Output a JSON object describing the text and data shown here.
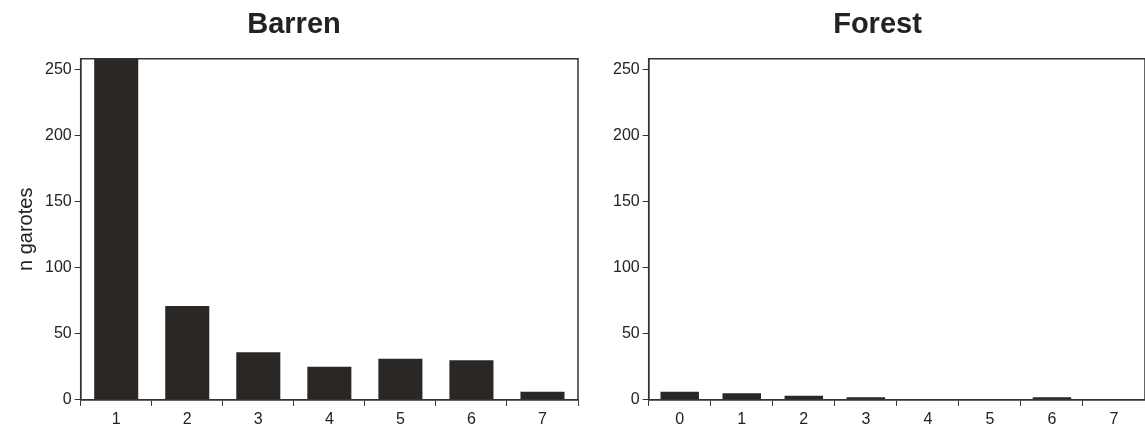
{
  "chart_data": [
    {
      "type": "bar",
      "title": "Barren",
      "ylabel": "n garotes",
      "categories": [
        "1",
        "2",
        "3",
        "4",
        "5",
        "6",
        "7"
      ],
      "values": [
        258,
        71,
        36,
        25,
        31,
        30,
        6
      ],
      "color": "#2b2725",
      "ylim": [
        0,
        258
      ],
      "yticks": [
        0,
        50,
        100,
        150,
        200,
        250
      ]
    },
    {
      "type": "bar",
      "title": "Forest",
      "categories": [
        "0",
        "1",
        "2",
        "3",
        "4",
        "5",
        "6",
        "7"
      ],
      "values": [
        6,
        5,
        3,
        2,
        0,
        0,
        2,
        0
      ],
      "color": "#2b2725",
      "ylim": [
        0,
        258
      ],
      "yticks": [
        0,
        50,
        100,
        150,
        200,
        250
      ]
    }
  ]
}
